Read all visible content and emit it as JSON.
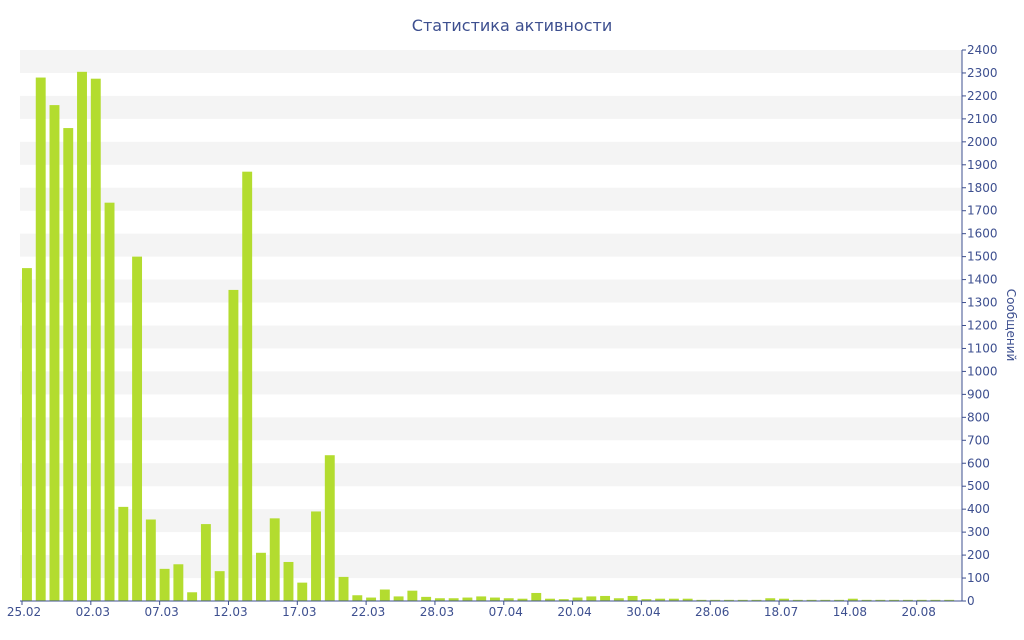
{
  "chart_data": {
    "type": "bar",
    "title": "Статистика активности",
    "xlabel": "",
    "ylabel": "Сообщений",
    "ylim": [
      0,
      2400
    ],
    "yticks": [
      0,
      100,
      200,
      300,
      400,
      500,
      600,
      700,
      800,
      900,
      1000,
      1100,
      1200,
      1300,
      1400,
      1500,
      1600,
      1700,
      1800,
      1900,
      2000,
      2100,
      2200,
      2300,
      2400
    ],
    "x_tick_labels": [
      "25.02",
      "02.03",
      "07.03",
      "12.03",
      "17.03",
      "22.03",
      "28.03",
      "07.04",
      "20.04",
      "30.04",
      "28.06",
      "18.07",
      "14.08",
      "20.08"
    ],
    "x_tick_bar_index": [
      0,
      5,
      10,
      15,
      20,
      25,
      30,
      35,
      40,
      45,
      50,
      55,
      60,
      65
    ],
    "grid": "horizontal-bands",
    "bar_color": "#b3dc2f",
    "text_color": "#3d4f8f",
    "values": [
      1450,
      2280,
      2160,
      2060,
      2305,
      2275,
      1735,
      410,
      1500,
      355,
      140,
      160,
      38,
      335,
      130,
      1355,
      1870,
      210,
      360,
      170,
      80,
      390,
      635,
      105,
      25,
      15,
      50,
      20,
      45,
      18,
      12,
      12,
      15,
      20,
      15,
      12,
      10,
      35,
      10,
      8,
      15,
      20,
      22,
      12,
      22,
      8,
      10,
      10,
      10,
      5,
      5,
      5,
      5,
      5,
      12,
      10,
      5,
      5,
      5,
      5,
      10,
      5,
      5,
      5,
      5,
      5,
      5,
      5
    ]
  }
}
